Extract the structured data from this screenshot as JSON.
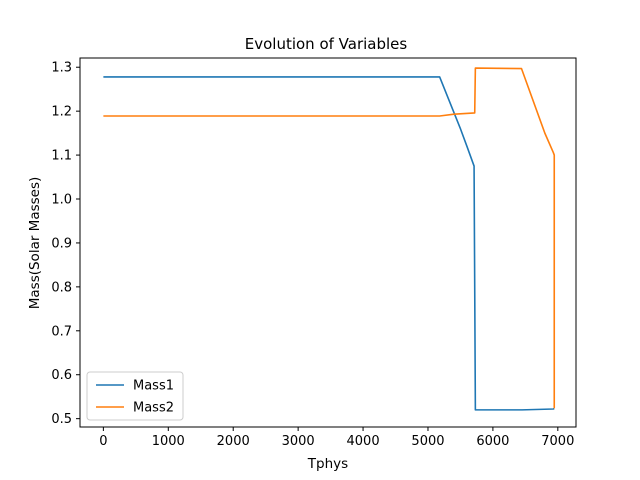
{
  "chart_data": {
    "type": "line",
    "title": "Evolution of Variables",
    "xlabel": "Tphys",
    "ylabel": "Mass(Solar Masses)",
    "xlim": [
      -360,
      7280
    ],
    "ylim": [
      0.481,
      1.321
    ],
    "xticks": [
      0,
      1000,
      2000,
      3000,
      4000,
      5000,
      6000,
      7000
    ],
    "yticks": [
      0.5,
      0.6,
      0.7,
      0.8,
      0.9,
      1.0,
      1.1,
      1.2,
      1.3
    ],
    "xtick_labels": [
      "0",
      "1000",
      "2000",
      "3000",
      "4000",
      "5000",
      "6000",
      "7000"
    ],
    "ytick_labels": [
      "0.5",
      "0.6",
      "0.7",
      "0.8",
      "0.9",
      "1.0",
      "1.1",
      "1.2",
      "1.3"
    ],
    "grid": false,
    "legend_position": "lower-left",
    "series": [
      {
        "name": "Mass1",
        "color": "#1f77b4",
        "points": [
          [
            0,
            1.278
          ],
          [
            5180,
            1.278
          ],
          [
            5500,
            1.16
          ],
          [
            5600,
            1.12
          ],
          [
            5710,
            1.075
          ],
          [
            5730,
            0.52
          ],
          [
            6450,
            0.52
          ],
          [
            6930,
            0.522
          ],
          [
            6945,
            0.523
          ]
        ]
      },
      {
        "name": "Mass2",
        "color": "#ff7f0e",
        "points": [
          [
            0,
            1.189
          ],
          [
            5180,
            1.189
          ],
          [
            5400,
            1.193
          ],
          [
            5720,
            1.196
          ],
          [
            5730,
            1.298
          ],
          [
            6440,
            1.297
          ],
          [
            6800,
            1.15
          ],
          [
            6930,
            1.106
          ],
          [
            6945,
            1.1
          ],
          [
            6945,
            0.525
          ],
          [
            6945,
            0.54
          ]
        ]
      }
    ]
  }
}
